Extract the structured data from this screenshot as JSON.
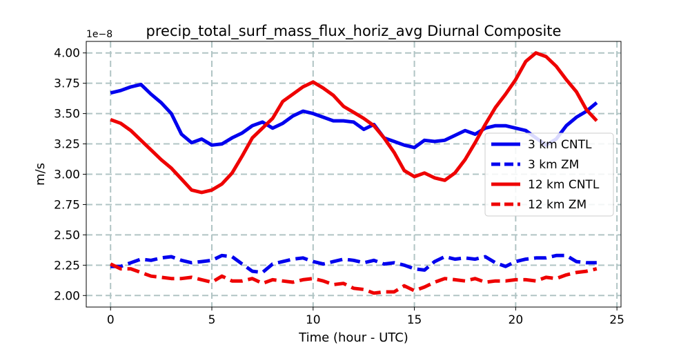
{
  "chart_data": {
    "type": "line",
    "title": "precip_total_surf_mass_flux_horiz_avg Diurnal Composite",
    "xlabel": "Time (hour - UTC)",
    "ylabel": "m/s",
    "y_offset_text": "1e−8",
    "xlim": [
      -1.2,
      25.2
    ],
    "ylim": [
      1.905,
      4.095
    ],
    "xticks": [
      0,
      5,
      10,
      15,
      20,
      25
    ],
    "xtick_labels": [
      "0",
      "5",
      "10",
      "15",
      "20",
      "25"
    ],
    "yticks": [
      2.0,
      2.25,
      2.5,
      2.75,
      3.0,
      3.25,
      3.5,
      3.75,
      4.0
    ],
    "ytick_labels": [
      "2.00",
      "2.25",
      "2.50",
      "2.75",
      "3.00",
      "3.25",
      "3.50",
      "3.75",
      "4.00"
    ],
    "grid": true,
    "legend_position": "center-right",
    "series": [
      {
        "name": "3 km CNTL",
        "color": "#0000ee",
        "dash": "solid",
        "points": [
          [
            0,
            3.67
          ],
          [
            0.5,
            3.69
          ],
          [
            1,
            3.72
          ],
          [
            1.5,
            3.74
          ],
          [
            2,
            3.66
          ],
          [
            2.5,
            3.59
          ],
          [
            3,
            3.5
          ],
          [
            3.5,
            3.33
          ],
          [
            4,
            3.26
          ],
          [
            4.5,
            3.29
          ],
          [
            5,
            3.24
          ],
          [
            5.5,
            3.25
          ],
          [
            6,
            3.3
          ],
          [
            6.5,
            3.34
          ],
          [
            7,
            3.4
          ],
          [
            7.5,
            3.43
          ],
          [
            8,
            3.38
          ],
          [
            8.5,
            3.42
          ],
          [
            9,
            3.48
          ],
          [
            9.5,
            3.52
          ],
          [
            10,
            3.5
          ],
          [
            10.5,
            3.47
          ],
          [
            11,
            3.44
          ],
          [
            11.5,
            3.44
          ],
          [
            12,
            3.43
          ],
          [
            12.5,
            3.37
          ],
          [
            13,
            3.41
          ],
          [
            13.5,
            3.3
          ],
          [
            14,
            3.27
          ],
          [
            14.5,
            3.24
          ],
          [
            15,
            3.22
          ],
          [
            15.5,
            3.28
          ],
          [
            16,
            3.27
          ],
          [
            16.5,
            3.28
          ],
          [
            17,
            3.32
          ],
          [
            17.5,
            3.36
          ],
          [
            18,
            3.33
          ],
          [
            18.5,
            3.38
          ],
          [
            19,
            3.4
          ],
          [
            19.5,
            3.4
          ],
          [
            20,
            3.38
          ],
          [
            20.5,
            3.36
          ],
          [
            21,
            3.3
          ],
          [
            21.5,
            3.24
          ],
          [
            22,
            3.29
          ],
          [
            22.5,
            3.4
          ],
          [
            23,
            3.47
          ],
          [
            23.5,
            3.52
          ],
          [
            24,
            3.59
          ]
        ]
      },
      {
        "name": "3 km ZM",
        "color": "#0000ee",
        "dash": "dashed",
        "points": [
          [
            0,
            2.24
          ],
          [
            0.5,
            2.24
          ],
          [
            1,
            2.27
          ],
          [
            1.5,
            2.3
          ],
          [
            2,
            2.29
          ],
          [
            2.5,
            2.31
          ],
          [
            3,
            2.32
          ],
          [
            3.5,
            2.29
          ],
          [
            4,
            2.27
          ],
          [
            4.5,
            2.28
          ],
          [
            5,
            2.29
          ],
          [
            5.5,
            2.33
          ],
          [
            6,
            2.32
          ],
          [
            6.5,
            2.26
          ],
          [
            7,
            2.2
          ],
          [
            7.5,
            2.19
          ],
          [
            8,
            2.26
          ],
          [
            8.5,
            2.28
          ],
          [
            9,
            2.3
          ],
          [
            9.5,
            2.31
          ],
          [
            10,
            2.28
          ],
          [
            10.5,
            2.26
          ],
          [
            11,
            2.28
          ],
          [
            11.5,
            2.3
          ],
          [
            12,
            2.29
          ],
          [
            12.5,
            2.27
          ],
          [
            13,
            2.29
          ],
          [
            13.5,
            2.26
          ],
          [
            14,
            2.27
          ],
          [
            14.5,
            2.25
          ],
          [
            15,
            2.22
          ],
          [
            15.5,
            2.21
          ],
          [
            16,
            2.28
          ],
          [
            16.5,
            2.32
          ],
          [
            17,
            2.3
          ],
          [
            17.5,
            2.31
          ],
          [
            18,
            2.3
          ],
          [
            18.5,
            2.32
          ],
          [
            19,
            2.27
          ],
          [
            19.5,
            2.24
          ],
          [
            20,
            2.28
          ],
          [
            20.5,
            2.3
          ],
          [
            21,
            2.31
          ],
          [
            21.5,
            2.31
          ],
          [
            22,
            2.33
          ],
          [
            22.5,
            2.33
          ],
          [
            23,
            2.28
          ],
          [
            23.5,
            2.27
          ],
          [
            24,
            2.27
          ]
        ]
      },
      {
        "name": "12 km CNTL",
        "color": "#ee0000",
        "dash": "solid",
        "points": [
          [
            0,
            3.45
          ],
          [
            0.5,
            3.42
          ],
          [
            1,
            3.36
          ],
          [
            1.5,
            3.28
          ],
          [
            2,
            3.2
          ],
          [
            2.5,
            3.12
          ],
          [
            3,
            3.05
          ],
          [
            3.5,
            2.96
          ],
          [
            4,
            2.87
          ],
          [
            4.5,
            2.85
          ],
          [
            5,
            2.87
          ],
          [
            5.5,
            2.92
          ],
          [
            6,
            3.01
          ],
          [
            6.5,
            3.15
          ],
          [
            7,
            3.3
          ],
          [
            7.5,
            3.38
          ],
          [
            8,
            3.46
          ],
          [
            8.5,
            3.6
          ],
          [
            9,
            3.66
          ],
          [
            9.5,
            3.72
          ],
          [
            10,
            3.76
          ],
          [
            10.5,
            3.71
          ],
          [
            11,
            3.65
          ],
          [
            11.5,
            3.56
          ],
          [
            12,
            3.51
          ],
          [
            12.5,
            3.46
          ],
          [
            13,
            3.4
          ],
          [
            13.5,
            3.3
          ],
          [
            14,
            3.18
          ],
          [
            14.5,
            3.03
          ],
          [
            15,
            2.98
          ],
          [
            15.5,
            3.01
          ],
          [
            16,
            2.97
          ],
          [
            16.5,
            2.95
          ],
          [
            17,
            3.01
          ],
          [
            17.5,
            3.12
          ],
          [
            18,
            3.26
          ],
          [
            18.5,
            3.41
          ],
          [
            19,
            3.55
          ],
          [
            19.5,
            3.66
          ],
          [
            20,
            3.78
          ],
          [
            20.5,
            3.93
          ],
          [
            21,
            4.0
          ],
          [
            21.5,
            3.97
          ],
          [
            22,
            3.89
          ],
          [
            22.5,
            3.78
          ],
          [
            23,
            3.68
          ],
          [
            23.5,
            3.53
          ],
          [
            24,
            3.44
          ]
        ]
      },
      {
        "name": "12 km ZM",
        "color": "#ee0000",
        "dash": "dashed",
        "points": [
          [
            0,
            2.26
          ],
          [
            0.5,
            2.22
          ],
          [
            1,
            2.22
          ],
          [
            1.5,
            2.19
          ],
          [
            2,
            2.16
          ],
          [
            2.5,
            2.15
          ],
          [
            3,
            2.14
          ],
          [
            3.5,
            2.14
          ],
          [
            4,
            2.15
          ],
          [
            4.5,
            2.13
          ],
          [
            5,
            2.11
          ],
          [
            5.5,
            2.16
          ],
          [
            6,
            2.12
          ],
          [
            6.5,
            2.12
          ],
          [
            7,
            2.14
          ],
          [
            7.5,
            2.1
          ],
          [
            8,
            2.13
          ],
          [
            8.5,
            2.12
          ],
          [
            9,
            2.11
          ],
          [
            9.5,
            2.13
          ],
          [
            10,
            2.14
          ],
          [
            10.5,
            2.12
          ],
          [
            11,
            2.09
          ],
          [
            11.5,
            2.1
          ],
          [
            12,
            2.06
          ],
          [
            12.5,
            2.05
          ],
          [
            13,
            2.02
          ],
          [
            13.5,
            2.03
          ],
          [
            14,
            2.03
          ],
          [
            14.5,
            2.08
          ],
          [
            15,
            2.04
          ],
          [
            15.5,
            2.07
          ],
          [
            16,
            2.11
          ],
          [
            16.5,
            2.14
          ],
          [
            17,
            2.13
          ],
          [
            17.5,
            2.12
          ],
          [
            18,
            2.14
          ],
          [
            18.5,
            2.11
          ],
          [
            19,
            2.12
          ],
          [
            19.5,
            2.12
          ],
          [
            20,
            2.13
          ],
          [
            20.5,
            2.13
          ],
          [
            21,
            2.12
          ],
          [
            21.5,
            2.15
          ],
          [
            22,
            2.14
          ],
          [
            22.5,
            2.17
          ],
          [
            23,
            2.19
          ],
          [
            23.5,
            2.2
          ],
          [
            24,
            2.22
          ]
        ]
      }
    ]
  }
}
